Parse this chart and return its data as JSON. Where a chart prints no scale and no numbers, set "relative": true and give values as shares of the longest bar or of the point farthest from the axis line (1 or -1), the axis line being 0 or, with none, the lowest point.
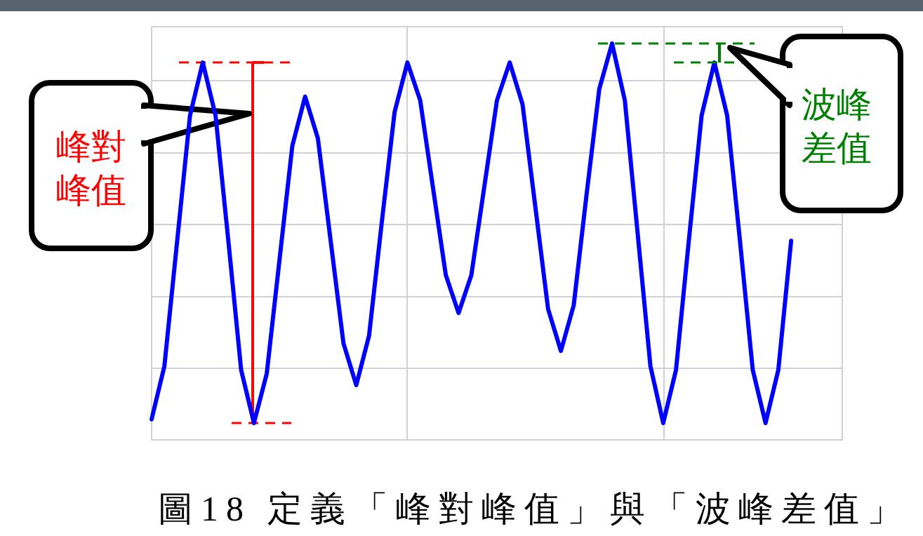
{
  "chart_data": {
    "type": "line",
    "relative": true,
    "grid": true,
    "categories": [
      null,
      null,
      null,
      null,
      null,
      null,
      null,
      null,
      null,
      null,
      null,
      null,
      null,
      null,
      null,
      null,
      null,
      null,
      null,
      null,
      null,
      null,
      null,
      null,
      null,
      null,
      null,
      null,
      null,
      null,
      null,
      null,
      null,
      null,
      null,
      null,
      null,
      null,
      null,
      null,
      null,
      null,
      null,
      null,
      null,
      null,
      null,
      null,
      null,
      null,
      null,
      null,
      null,
      null,
      null
    ],
    "series": [
      {
        "color": "#0000ff",
        "values": [
          0.01,
          0.15,
          0.48,
          0.81,
          0.95,
          0.81,
          0.48,
          0.14,
          0,
          0.13,
          0.43,
          0.73,
          0.86,
          0.75,
          0.48,
          0.21,
          0.1,
          0.23,
          0.53,
          0.82,
          0.95,
          0.85,
          0.62,
          0.39,
          0.29,
          0.39,
          0.62,
          0.85,
          0.95,
          0.84,
          0.57,
          0.3,
          0.19,
          0.31,
          0.6,
          0.88,
          1,
          0.85,
          0.5,
          0.15,
          0,
          0.14,
          0.48,
          0.81,
          0.95,
          0.81,
          0.48,
          0.14,
          0,
          0.14,
          0.48,
          null,
          null,
          null,
          null
        ]
      }
    ],
    "ref_lines": [
      {
        "axis": "y",
        "value": 0.95,
        "color": "#ff0000",
        "line_style": "dashed"
      },
      {
        "axis": "y",
        "value": 0,
        "color": "#ff0000",
        "line_style": "dashed",
        "label": "峰對峰值"
      },
      {
        "axis": "y",
        "value": 1,
        "color": "#008000",
        "line_style": "dashed"
      },
      {
        "axis": "y",
        "value": 0.95,
        "color": "#008000",
        "line_style": "dashed",
        "label": "波峰差值"
      }
    ],
    "annotations": [
      "圖18 定義「峰對峰值」與「波峰差值」"
    ]
  }
}
